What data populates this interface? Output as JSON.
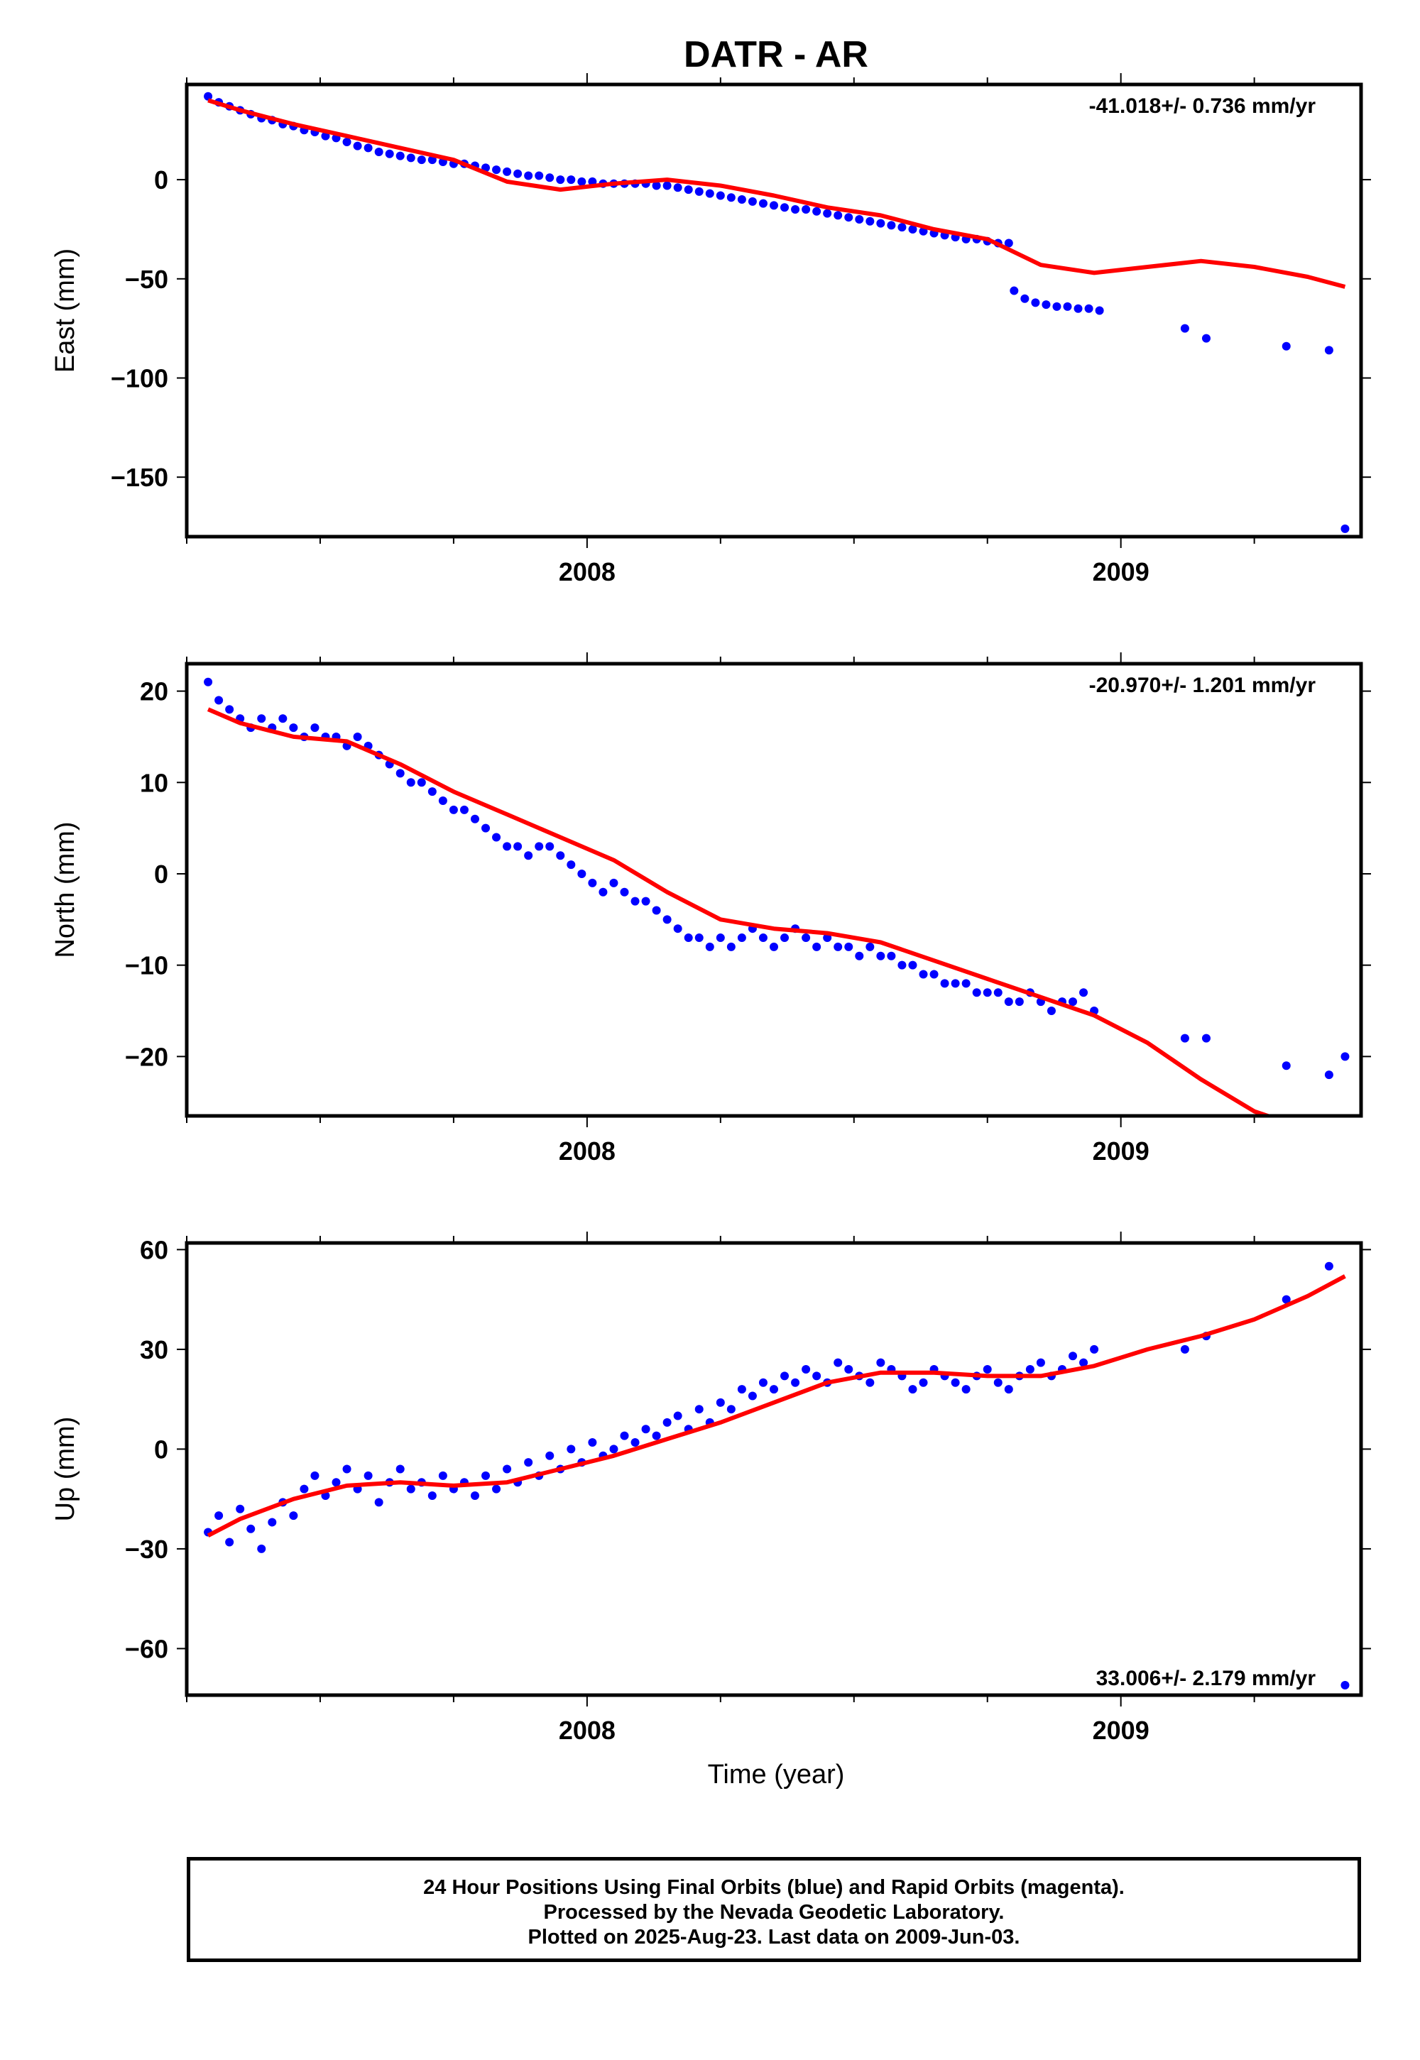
{
  "title": "DATR - AR",
  "xlabel": "Time (year)",
  "caption": [
    "24 Hour Positions Using Final Orbits (blue) and Rapid Orbits (magenta).",
    "Processed by the Nevada Geodetic Laboratory.",
    "Plotted on 2025-Aug-23. Last data on 2009-Jun-03."
  ],
  "colors": {
    "data": "#0000ff",
    "fit": "#ff0000",
    "axis": "#000000"
  },
  "chart_data": [
    {
      "type": "scatter",
      "component": "east",
      "ylabel": "East (mm)",
      "rate_label": "-41.018+/- 0.736 mm/yr",
      "xlim": [
        2007.25,
        2009.45
      ],
      "ylim": [
        -180,
        48
      ],
      "xticks": [
        2008,
        2009
      ],
      "yticks": [
        0,
        -50,
        -100,
        -150
      ],
      "grid": false,
      "legend": "none",
      "series": [
        {
          "role": "observations",
          "marker": "dot",
          "x": [
            2007.29,
            2007.31,
            2007.33,
            2007.35,
            2007.37,
            2007.39,
            2007.41,
            2007.43,
            2007.45,
            2007.47,
            2007.49,
            2007.51,
            2007.53,
            2007.55,
            2007.57,
            2007.59,
            2007.61,
            2007.63,
            2007.65,
            2007.67,
            2007.69,
            2007.71,
            2007.73,
            2007.75,
            2007.77,
            2007.79,
            2007.81,
            2007.83,
            2007.85,
            2007.87,
            2007.89,
            2007.91,
            2007.93,
            2007.95,
            2007.97,
            2007.99,
            2008.01,
            2008.03,
            2008.05,
            2008.07,
            2008.09,
            2008.11,
            2008.13,
            2008.15,
            2008.17,
            2008.19,
            2008.21,
            2008.23,
            2008.25,
            2008.27,
            2008.29,
            2008.31,
            2008.33,
            2008.35,
            2008.37,
            2008.39,
            2008.41,
            2008.43,
            2008.45,
            2008.47,
            2008.49,
            2008.51,
            2008.53,
            2008.55,
            2008.57,
            2008.59,
            2008.61,
            2008.63,
            2008.65,
            2008.67,
            2008.69,
            2008.71,
            2008.73,
            2008.75,
            2008.77,
            2008.79,
            2008.8,
            2008.82,
            2008.84,
            2008.86,
            2008.88,
            2008.9,
            2008.92,
            2008.94,
            2008.96,
            2009.12,
            2009.16,
            2009.31,
            2009.39,
            2009.42
          ],
          "y": [
            42,
            39,
            37,
            35,
            33,
            31,
            30,
            28,
            27,
            25,
            24,
            22,
            21,
            19,
            17,
            16,
            14,
            13,
            12,
            11,
            10,
            10,
            9,
            8,
            8,
            7,
            6,
            5,
            4,
            3,
            2,
            2,
            1,
            0,
            0,
            -1,
            -1,
            -2,
            -2,
            -2,
            -2,
            -2,
            -3,
            -3,
            -4,
            -5,
            -6,
            -7,
            -8,
            -9,
            -10,
            -11,
            -12,
            -13,
            -14,
            -15,
            -15,
            -16,
            -17,
            -18,
            -19,
            -20,
            -21,
            -22,
            -23,
            -24,
            -25,
            -26,
            -27,
            -28,
            -29,
            -30,
            -30,
            -31,
            -32,
            -32,
            -56,
            -60,
            -62,
            -63,
            -64,
            -64,
            -65,
            -65,
            -66,
            -75,
            -80,
            -84,
            -86,
            -176
          ]
        },
        {
          "role": "fit",
          "x": [
            2007.29,
            2007.35,
            2007.45,
            2007.55,
            2007.65,
            2007.75,
            2007.85,
            2007.95,
            2008.05,
            2008.15,
            2008.25,
            2008.35,
            2008.45,
            2008.55,
            2008.65,
            2008.75,
            2008.85,
            2008.95,
            2009.05,
            2009.15,
            2009.25,
            2009.35,
            2009.42
          ],
          "y": [
            40,
            35,
            28,
            22,
            16,
            10,
            -1,
            -5,
            -2,
            0,
            -3,
            -8,
            -14,
            -18,
            -25,
            -30,
            -43,
            -47,
            -44,
            -41,
            -44,
            -49,
            -54
          ]
        }
      ]
    },
    {
      "type": "scatter",
      "component": "north",
      "ylabel": "North (mm)",
      "rate_label": "-20.970+/- 1.201 mm/yr",
      "xlim": [
        2007.25,
        2009.45
      ],
      "ylim": [
        -26.5,
        23
      ],
      "xticks": [
        2008,
        2009
      ],
      "yticks": [
        20,
        10,
        0,
        -10,
        -20
      ],
      "grid": false,
      "legend": "none",
      "series": [
        {
          "role": "observations",
          "marker": "dot",
          "x": [
            2007.29,
            2007.31,
            2007.33,
            2007.35,
            2007.37,
            2007.39,
            2007.41,
            2007.43,
            2007.45,
            2007.47,
            2007.49,
            2007.51,
            2007.53,
            2007.55,
            2007.57,
            2007.59,
            2007.61,
            2007.63,
            2007.65,
            2007.67,
            2007.69,
            2007.71,
            2007.73,
            2007.75,
            2007.77,
            2007.79,
            2007.81,
            2007.83,
            2007.85,
            2007.87,
            2007.89,
            2007.91,
            2007.93,
            2007.95,
            2007.97,
            2007.99,
            2008.01,
            2008.03,
            2008.05,
            2008.07,
            2008.09,
            2008.11,
            2008.13,
            2008.15,
            2008.17,
            2008.19,
            2008.21,
            2008.23,
            2008.25,
            2008.27,
            2008.29,
            2008.31,
            2008.33,
            2008.35,
            2008.37,
            2008.39,
            2008.41,
            2008.43,
            2008.45,
            2008.47,
            2008.49,
            2008.51,
            2008.53,
            2008.55,
            2008.57,
            2008.59,
            2008.61,
            2008.63,
            2008.65,
            2008.67,
            2008.69,
            2008.71,
            2008.73,
            2008.75,
            2008.77,
            2008.79,
            2008.81,
            2008.83,
            2008.85,
            2008.87,
            2008.89,
            2008.91,
            2008.93,
            2008.95,
            2009.12,
            2009.16,
            2009.31,
            2009.39,
            2009.42
          ],
          "y": [
            21,
            19,
            18,
            17,
            16,
            17,
            16,
            17,
            16,
            15,
            16,
            15,
            15,
            14,
            15,
            14,
            13,
            12,
            11,
            10,
            10,
            9,
            8,
            7,
            7,
            6,
            5,
            4,
            3,
            3,
            2,
            3,
            3,
            2,
            1,
            0,
            -1,
            -2,
            -1,
            -2,
            -3,
            -3,
            -4,
            -5,
            -6,
            -7,
            -7,
            -8,
            -7,
            -8,
            -7,
            -6,
            -7,
            -8,
            -7,
            -6,
            -7,
            -8,
            -7,
            -8,
            -8,
            -9,
            -8,
            -9,
            -9,
            -10,
            -10,
            -11,
            -11,
            -12,
            -12,
            -12,
            -13,
            -13,
            -13,
            -14,
            -14,
            -13,
            -14,
            -15,
            -14,
            -14,
            -13,
            -15,
            -18,
            -18,
            -21,
            -22,
            -20
          ]
        },
        {
          "role": "fit",
          "x": [
            2007.29,
            2007.35,
            2007.45,
            2007.55,
            2007.65,
            2007.75,
            2007.85,
            2007.95,
            2008.05,
            2008.15,
            2008.25,
            2008.35,
            2008.45,
            2008.55,
            2008.65,
            2008.75,
            2008.85,
            2008.95,
            2009.05,
            2009.15,
            2009.25,
            2009.3
          ],
          "y": [
            18,
            16.5,
            15,
            14.5,
            12,
            9,
            6.5,
            4,
            1.5,
            -2,
            -5,
            -6,
            -6.5,
            -7.5,
            -9.5,
            -11.5,
            -13.5,
            -15.5,
            -18.5,
            -22.5,
            -26,
            -27
          ]
        }
      ]
    },
    {
      "type": "scatter",
      "component": "up",
      "ylabel": "Up (mm)",
      "rate_label": "33.006+/- 2.179 mm/yr",
      "xlim": [
        2007.25,
        2009.45
      ],
      "ylim": [
        -74,
        62
      ],
      "xticks": [
        2008,
        2009
      ],
      "yticks": [
        60,
        30,
        0,
        -30,
        -60
      ],
      "grid": false,
      "legend": "none",
      "series": [
        {
          "role": "observations",
          "marker": "dot",
          "x": [
            2007.29,
            2007.31,
            2007.33,
            2007.35,
            2007.37,
            2007.39,
            2007.41,
            2007.43,
            2007.45,
            2007.47,
            2007.49,
            2007.51,
            2007.53,
            2007.55,
            2007.57,
            2007.59,
            2007.61,
            2007.63,
            2007.65,
            2007.67,
            2007.69,
            2007.71,
            2007.73,
            2007.75,
            2007.77,
            2007.79,
            2007.81,
            2007.83,
            2007.85,
            2007.87,
            2007.89,
            2007.91,
            2007.93,
            2007.95,
            2007.97,
            2007.99,
            2008.01,
            2008.03,
            2008.05,
            2008.07,
            2008.09,
            2008.11,
            2008.13,
            2008.15,
            2008.17,
            2008.19,
            2008.21,
            2008.23,
            2008.25,
            2008.27,
            2008.29,
            2008.31,
            2008.33,
            2008.35,
            2008.37,
            2008.39,
            2008.41,
            2008.43,
            2008.45,
            2008.47,
            2008.49,
            2008.51,
            2008.53,
            2008.55,
            2008.57,
            2008.59,
            2008.61,
            2008.63,
            2008.65,
            2008.67,
            2008.69,
            2008.71,
            2008.73,
            2008.75,
            2008.77,
            2008.79,
            2008.81,
            2008.83,
            2008.85,
            2008.87,
            2008.89,
            2008.91,
            2008.93,
            2008.95,
            2009.12,
            2009.16,
            2009.31,
            2009.39,
            2009.42
          ],
          "y": [
            -25,
            -20,
            -28,
            -18,
            -24,
            -30,
            -22,
            -16,
            -20,
            -12,
            -8,
            -14,
            -10,
            -6,
            -12,
            -8,
            -16,
            -10,
            -6,
            -12,
            -10,
            -14,
            -8,
            -12,
            -10,
            -14,
            -8,
            -12,
            -6,
            -10,
            -4,
            -8,
            -2,
            -6,
            0,
            -4,
            2,
            -2,
            0,
            4,
            2,
            6,
            4,
            8,
            10,
            6,
            12,
            8,
            14,
            12,
            18,
            16,
            20,
            18,
            22,
            20,
            24,
            22,
            20,
            26,
            24,
            22,
            20,
            26,
            24,
            22,
            18,
            20,
            24,
            22,
            20,
            18,
            22,
            24,
            20,
            18,
            22,
            24,
            26,
            22,
            24,
            28,
            26,
            30,
            30,
            34,
            45,
            55,
            -71
          ]
        },
        {
          "role": "fit",
          "x": [
            2007.29,
            2007.35,
            2007.45,
            2007.55,
            2007.65,
            2007.75,
            2007.85,
            2007.95,
            2008.05,
            2008.15,
            2008.25,
            2008.35,
            2008.45,
            2008.55,
            2008.65,
            2008.75,
            2008.85,
            2008.95,
            2009.05,
            2009.15,
            2009.25,
            2009.35,
            2009.42
          ],
          "y": [
            -26,
            -21,
            -15,
            -11,
            -10,
            -11,
            -10,
            -6,
            -2,
            3,
            8,
            14,
            20,
            23,
            23,
            22,
            22,
            25,
            30,
            34,
            39,
            46,
            52
          ]
        }
      ]
    }
  ]
}
